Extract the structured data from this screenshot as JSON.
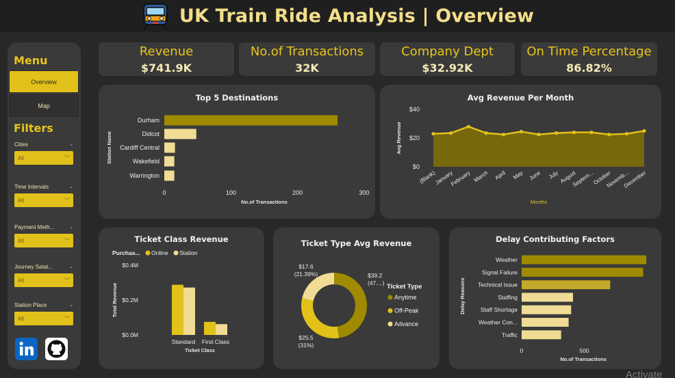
{
  "header": {
    "title": "UK Train Ride Analysis | Overview",
    "icon": "train-icon"
  },
  "sidebar": {
    "menu_title": "Menu",
    "nav": [
      {
        "label": "Overview",
        "active": true
      },
      {
        "label": "Map",
        "active": false
      }
    ],
    "filters_title": "Filters",
    "filters": [
      {
        "label": "Cities",
        "value": "All"
      },
      {
        "label": "Time Intervals",
        "value": "All"
      },
      {
        "label": "Payment Meth...",
        "value": "All"
      },
      {
        "label": "Journey Satat...",
        "value": "All"
      },
      {
        "label": "Station Place",
        "value": "All"
      }
    ],
    "social": [
      "linkedin-icon",
      "github-icon"
    ]
  },
  "kpis": [
    {
      "label": "Revenue",
      "value": "$741.9K"
    },
    {
      "label": "No.of Transactions",
      "value": "32K"
    },
    {
      "label": "Company Dept",
      "value": "$32.92K"
    },
    {
      "label": "On Time Percentage",
      "value": "86.82%"
    }
  ],
  "colors": {
    "accent": "#e2c21a",
    "dark_gold": "#a08a00",
    "light_gold": "#f0dc94",
    "card": "#3a3a3a",
    "bg": "#282828"
  },
  "chart_data": [
    {
      "id": "top5",
      "type": "bar",
      "orientation": "horizontal",
      "title": "Top 5 Destinations",
      "xlabel": "No.of Transactions",
      "ylabel": "Station Name",
      "categories": [
        "Durham",
        "Didcot",
        "Cardiff Central",
        "Wakefield",
        "Warrington"
      ],
      "values": [
        260,
        48,
        16,
        15,
        15
      ],
      "xlim": [
        0,
        300
      ],
      "xticks": [
        "0",
        "100",
        "200",
        "300"
      ]
    },
    {
      "id": "monthly",
      "type": "area",
      "title": "Avg Revenue Per Month",
      "xlabel": "Months",
      "ylabel": "Avg Revenue",
      "categories": [
        "(Blank)",
        "January",
        "February",
        "March",
        "April",
        "May",
        "June",
        "July",
        "August",
        "Septem...",
        "October",
        "Novemb...",
        "December"
      ],
      "values": [
        23,
        23.5,
        28,
        23.5,
        22.5,
        24.5,
        22.5,
        23.5,
        24,
        24,
        22.5,
        23,
        25
      ],
      "ylim": [
        0,
        40
      ],
      "yticks": [
        "$0",
        "$20",
        "$40"
      ]
    },
    {
      "id": "ticketclass",
      "type": "bar",
      "title": "Ticket Class Revenue",
      "xlabel": "Ticket Class",
      "ylabel": "Total Revenue",
      "legend_title": "Purchas...",
      "categories": [
        "Standard",
        "First Class"
      ],
      "series": [
        {
          "name": "Online",
          "values": [
            0.288,
            0.075
          ]
        },
        {
          "name": "Station",
          "values": [
            0.272,
            0.062
          ]
        }
      ],
      "ylim": [
        0,
        0.4
      ],
      "yticks": [
        "$0.0M",
        "$0.2M",
        "$0.4M"
      ]
    },
    {
      "id": "tickettype",
      "type": "pie",
      "title": "Ticket Type Avg Revenue",
      "legend_title": "Ticket Type",
      "legend": [
        "Anytime",
        "Off-Peak",
        "Advance"
      ],
      "slices": [
        {
          "label": "Anytime",
          "value": 39.2,
          "text": "$39.2",
          "pct_text": "(47....)"
        },
        {
          "label": "Off-Peak",
          "value": 25.5,
          "text": "$25.5",
          "pct_text": "(31%)"
        },
        {
          "label": "Advance",
          "value": 17.6,
          "text": "$17.6",
          "pct_text": "(21.39%)"
        }
      ]
    },
    {
      "id": "delay",
      "type": "bar",
      "orientation": "horizontal",
      "title": "Delay Contributing Factors",
      "xlabel": "No.of Transactions",
      "ylabel": "Delay Reasons",
      "categories": [
        "Weather",
        "Signal Failure",
        "Technical Issue",
        "Staffing",
        "Staff Shortage",
        "Weather Con...",
        "Traffic"
      ],
      "values": [
        995,
        970,
        707,
        410,
        395,
        375,
        315
      ],
      "xlim": [
        0,
        1000
      ],
      "xticks": [
        "0",
        "500"
      ]
    }
  ],
  "watermark": "Activate"
}
